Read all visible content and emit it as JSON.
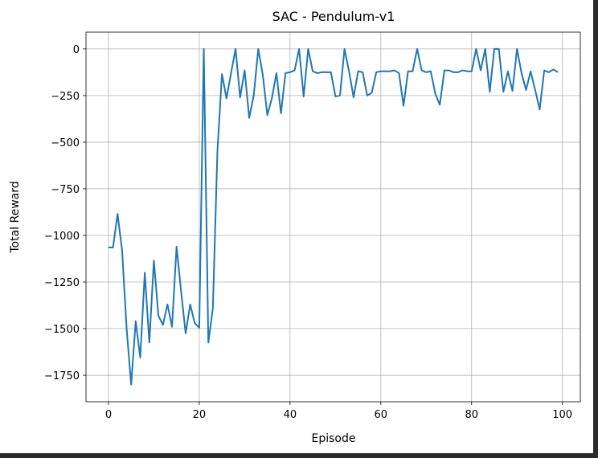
{
  "chart_data": {
    "type": "line",
    "title": "SAC - Pendulum-v1",
    "x_label": "Episode",
    "y_label": "Total Reward",
    "grid": true,
    "xlim": [
      -4.95,
      103.95
    ],
    "xticks": [
      0,
      20,
      40,
      60,
      80,
      100
    ],
    "ylim": [
      -1892,
      90
    ],
    "yticks": [
      0,
      {
        "value": -250,
        "label": "−250"
      },
      {
        "value": -500,
        "label": "−500"
      },
      {
        "value": -750,
        "label": "−750"
      },
      {
        "value": -1000,
        "label": "−1000"
      },
      {
        "value": -1250,
        "label": "−1250"
      },
      {
        "value": -1500,
        "label": "−1500"
      },
      {
        "value": -1750,
        "label": "−1750"
      }
    ],
    "x": [
      0,
      1,
      2,
      3,
      4,
      5,
      6,
      7,
      8,
      9,
      10,
      11,
      12,
      13,
      14,
      15,
      16,
      17,
      18,
      19,
      20,
      21,
      22,
      23,
      24,
      25,
      26,
      27,
      28,
      29,
      30,
      31,
      32,
      33,
      34,
      35,
      36,
      37,
      38,
      39,
      40,
      41,
      42,
      43,
      44,
      45,
      46,
      47,
      48,
      49,
      50,
      51,
      52,
      53,
      54,
      55,
      56,
      57,
      58,
      59,
      60,
      61,
      62,
      63,
      64,
      65,
      66,
      67,
      68,
      69,
      70,
      71,
      72,
      73,
      74,
      75,
      76,
      77,
      78,
      79,
      80,
      81,
      82,
      83,
      84,
      85,
      86,
      87,
      88,
      89,
      90,
      91,
      92,
      93,
      94,
      95,
      96,
      97,
      98,
      99
    ],
    "series": [
      {
        "color": "#1f77b4",
        "values": [
          -1065,
          -1065,
          -885,
          -1080,
          -1500,
          -1800,
          -1460,
          -1655,
          -1200,
          -1575,
          -1135,
          -1430,
          -1480,
          -1370,
          -1490,
          -1060,
          -1300,
          -1525,
          -1370,
          -1470,
          -1495,
          0,
          -1575,
          -1390,
          -550,
          -135,
          -265,
          -130,
          0,
          -260,
          -115,
          -370,
          -250,
          0,
          -140,
          -355,
          -265,
          -130,
          -345,
          -130,
          -125,
          -115,
          0,
          -255,
          0,
          -120,
          -130,
          -125,
          -125,
          -125,
          -255,
          -250,
          0,
          -120,
          -260,
          -120,
          -125,
          -250,
          -235,
          -125,
          -120,
          -120,
          -120,
          -115,
          -130,
          -305,
          -120,
          -120,
          0,
          -115,
          -125,
          -120,
          -240,
          -300,
          -115,
          -115,
          -125,
          -125,
          -115,
          -120,
          -120,
          0,
          -115,
          0,
          -230,
          0,
          0,
          -230,
          -120,
          -225,
          0,
          -130,
          -220,
          -120,
          -220,
          -325,
          -115,
          -125,
          -110,
          -125
        ]
      }
    ]
  }
}
